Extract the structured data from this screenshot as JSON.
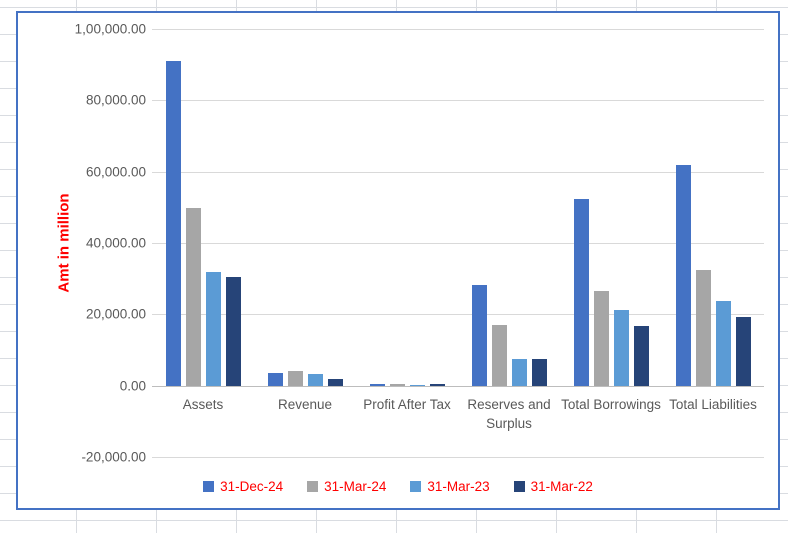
{
  "colors": {
    "chart_border": "#4472c4",
    "gridline": "#d9d9d9",
    "axis_text": "#595959",
    "red_text": "#ff0000"
  },
  "chart_data": {
    "type": "bar",
    "title": "",
    "xlabel": "",
    "ylabel": "Amt in million",
    "categories": [
      "Assets",
      "Revenue",
      "Profit After Tax",
      "Reserves and Surplus",
      "Total Borrowings",
      "Total Liabilities"
    ],
    "series": [
      {
        "name": "31-Dec-24",
        "color": "#4472c4",
        "values": [
          91000,
          3500,
          600,
          28100,
          52400,
          62000
        ]
      },
      {
        "name": "31-Mar-24",
        "color": "#a6a6a6",
        "values": [
          49800,
          4100,
          500,
          17000,
          26500,
          32400
        ]
      },
      {
        "name": "31-Mar-23",
        "color": "#5b9bd5",
        "values": [
          32000,
          3400,
          100,
          7400,
          21200,
          23800
        ]
      },
      {
        "name": "31-Mar-22",
        "color": "#264478",
        "values": [
          30500,
          1900,
          550,
          7500,
          16700,
          19300
        ]
      }
    ],
    "y_axis": {
      "min": -20000,
      "max": 100000,
      "step": 20000,
      "tick_labels": [
        "1,00,000.00",
        "80,000.00",
        "60,000.00",
        "40,000.00",
        "20,000.00",
        "0.00",
        "-20,000.00"
      ]
    },
    "grid": true,
    "legend_position": "bottom"
  }
}
